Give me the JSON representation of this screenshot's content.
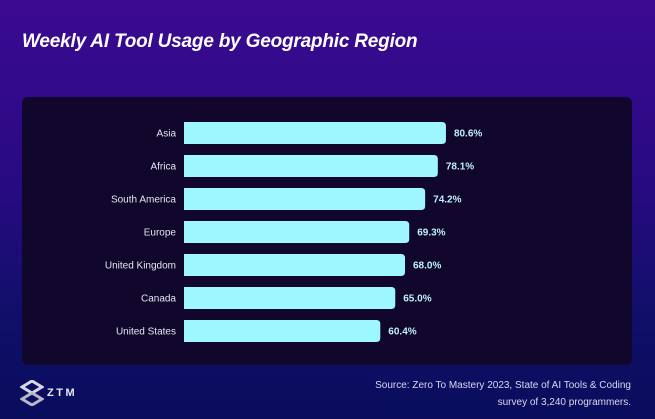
{
  "chart_data": {
    "type": "bar",
    "orientation": "horizontal",
    "title": "Weekly AI Tool Usage by Geographic Region",
    "categories": [
      "Asia",
      "Africa",
      "South America",
      "Europe",
      "United Kingdom",
      "Canada",
      "United States"
    ],
    "values": [
      80.6,
      78.1,
      74.2,
      69.3,
      68.0,
      65.0,
      60.4
    ],
    "value_labels": [
      "80.6%",
      "78.1%",
      "74.2%",
      "69.3%",
      "68.0%",
      "65.0%",
      "60.4%"
    ],
    "unit": "%",
    "xlim": [
      0,
      100
    ],
    "grid": false,
    "bar_color": "#9ef7ff",
    "label_color": "#bfefff"
  },
  "footer": {
    "source_line1": "Source: Zero To Mastery 2023, State of AI Tools & Coding",
    "source_line2": "survey of 3,240 programmers.",
    "logo_text": "ZTM"
  }
}
